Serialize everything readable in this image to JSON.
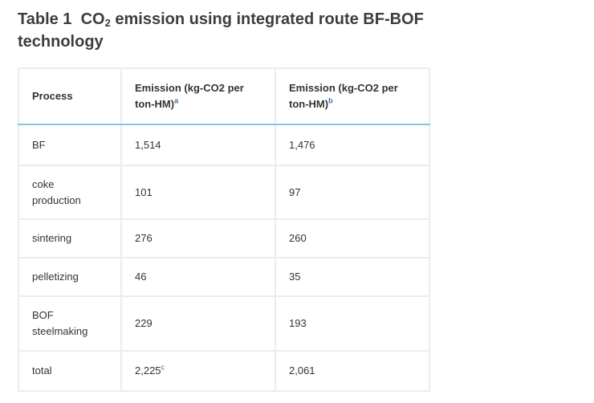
{
  "title": {
    "label": "Table 1",
    "main": "CO",
    "subscript": "2",
    "rest": " emission using integrated route BF-BOF technology"
  },
  "table": {
    "header": [
      {
        "text": "Process"
      },
      {
        "text": "Emission (kg-CO2 per ton-HM)",
        "note": "a"
      },
      {
        "text": "Emission (kg-CO2 per ton-HM)",
        "note": "b"
      }
    ],
    "rows": [
      [
        {
          "text": "BF"
        },
        {
          "text": "1,514"
        },
        {
          "text": "1,476"
        }
      ],
      [
        {
          "text": "coke production"
        },
        {
          "text": "101"
        },
        {
          "text": "97"
        }
      ],
      [
        {
          "text": "sintering"
        },
        {
          "text": "276"
        },
        {
          "text": "260"
        }
      ],
      [
        {
          "text": "pelletizing"
        },
        {
          "text": "46"
        },
        {
          "text": "35"
        }
      ],
      [
        {
          "text": "BOF steelmaking"
        },
        {
          "text": "229"
        },
        {
          "text": "193"
        }
      ],
      [
        {
          "text": "total"
        },
        {
          "text": "2,225",
          "note": "c"
        },
        {
          "text": "2,061"
        }
      ]
    ]
  }
}
